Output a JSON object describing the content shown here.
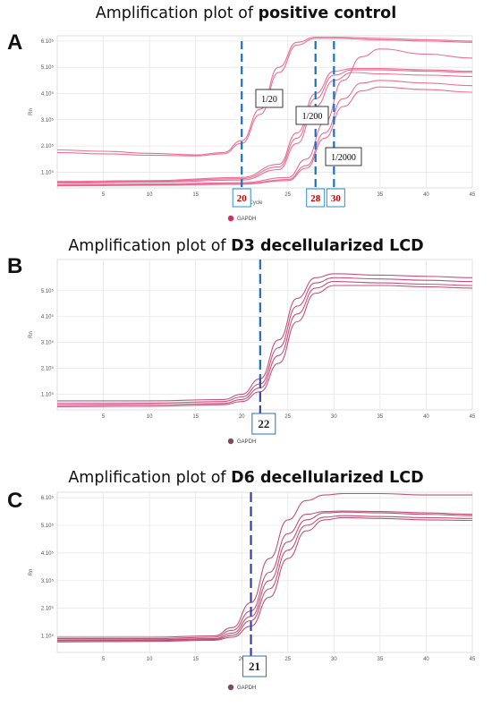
{
  "panels": [
    {
      "label": "A",
      "title_prefix": "Amplification plot of ",
      "title_bold": "positive control",
      "ylabel": "Rn",
      "xlabel": "Cycle",
      "legend": "GAPDH",
      "legend_color": "#e0265a",
      "curve_color": "#e8608a",
      "line_color": "#1f6fc0",
      "marker_color": "#c00000",
      "ct_markers": [
        {
          "cycle": 20,
          "label": "20"
        },
        {
          "cycle": 28,
          "label": "28"
        },
        {
          "cycle": 30,
          "label": "30"
        }
      ],
      "annotations": [
        "1/20",
        "1/200",
        "1/2000"
      ]
    },
    {
      "label": "B",
      "title_prefix": "Amplification plot of ",
      "title_bold": "D3 decellularized LCD",
      "ylabel": "Rn",
      "xlabel": "",
      "legend": "GAPDH",
      "legend_color": "#7a4a63",
      "curve_color": "#c0406f",
      "line_color": "#1f6fc0",
      "ct_markers": [
        {
          "cycle": 22,
          "label": "22"
        }
      ]
    },
    {
      "label": "C",
      "title_prefix": "Amplification plot of ",
      "title_bold": "D6 decellularized LCD",
      "ylabel": "Rn",
      "xlabel": "",
      "legend": "GAPDH",
      "legend_color": "#7a4a63",
      "curve_color": "#b8406a",
      "line_color": "#3a3fb0",
      "ct_markers": [
        {
          "cycle": 21,
          "label": "21"
        }
      ]
    }
  ],
  "chart_data": [
    {
      "type": "line",
      "title": "Amplification plot of positive control",
      "xlabel": "Cycle",
      "ylabel": "Rn",
      "xlim": [
        0,
        45
      ],
      "ylim": [
        0.5,
        6.3
      ],
      "x_ticks": [
        "5",
        "10",
        "15",
        "20",
        "25",
        "30",
        "35",
        "40",
        "45"
      ],
      "y_ticks": [
        "1.10⁵",
        "2.10⁵",
        "3.10⁵",
        "4.10⁵",
        "5.10⁵",
        "6.10⁵"
      ],
      "legend": [
        "GAPDH"
      ],
      "series": [
        {
          "name": "1/20",
          "x": [
            0,
            5,
            10,
            15,
            18,
            20,
            22,
            24,
            26,
            28,
            30,
            35,
            40,
            45
          ],
          "values": [
            1.85,
            1.8,
            1.75,
            1.72,
            1.8,
            2.2,
            3.3,
            4.9,
            5.95,
            6.2,
            6.2,
            6.15,
            6.1,
            6.05
          ]
        },
        {
          "name": "1/20",
          "x": [
            0,
            5,
            10,
            15,
            18,
            20,
            22,
            24,
            26,
            28,
            30,
            35,
            40,
            45
          ],
          "values": [
            1.95,
            1.9,
            1.82,
            1.76,
            1.85,
            2.3,
            3.5,
            5.1,
            6.05,
            6.25,
            6.25,
            6.2,
            6.15,
            6.1
          ]
        },
        {
          "name": "1/200",
          "x": [
            0,
            10,
            20,
            24,
            26,
            28,
            30,
            32,
            35,
            40,
            45
          ],
          "values": [
            0.72,
            0.75,
            0.85,
            1.3,
            2.4,
            3.9,
            4.8,
            5.0,
            5.0,
            4.95,
            4.9
          ]
        },
        {
          "name": "1/200",
          "x": [
            0,
            10,
            20,
            24,
            26,
            28,
            30,
            32,
            35,
            40,
            45
          ],
          "values": [
            0.68,
            0.72,
            0.8,
            1.2,
            2.2,
            3.6,
            4.6,
            4.9,
            4.85,
            4.8,
            4.75
          ]
        },
        {
          "name": "1/200",
          "x": [
            0,
            10,
            20,
            24,
            26,
            28,
            30,
            32,
            35,
            40,
            45
          ],
          "values": [
            0.75,
            0.78,
            0.9,
            1.4,
            2.6,
            4.1,
            4.95,
            5.05,
            5.05,
            5.0,
            4.95
          ]
        },
        {
          "name": "1/2000",
          "x": [
            0,
            10,
            20,
            25,
            27,
            29,
            31,
            33,
            35,
            40,
            45
          ],
          "values": [
            0.62,
            0.65,
            0.7,
            0.9,
            1.6,
            3.0,
            4.6,
            5.5,
            5.8,
            5.6,
            5.45
          ]
        },
        {
          "name": "1/2000",
          "x": [
            0,
            10,
            20,
            25,
            27,
            29,
            31,
            33,
            35,
            40,
            45
          ],
          "values": [
            0.6,
            0.62,
            0.66,
            0.82,
            1.35,
            2.6,
            3.9,
            4.5,
            4.6,
            4.5,
            4.4
          ]
        },
        {
          "name": "1/2000",
          "x": [
            0,
            10,
            20,
            25,
            27,
            29,
            31,
            33,
            35,
            40,
            45
          ],
          "values": [
            0.58,
            0.6,
            0.64,
            0.78,
            1.25,
            2.4,
            3.6,
            4.2,
            4.35,
            4.25,
            4.15
          ]
        }
      ],
      "annotations": [
        "1/20",
        "1/200",
        "1/2000",
        "20",
        "28",
        "30"
      ]
    },
    {
      "type": "line",
      "title": "Amplification plot of D3 decellularized LCD",
      "ylabel": "Rn",
      "xlim": [
        0,
        45
      ],
      "ylim": [
        0.5,
        6.3
      ],
      "x_ticks": [
        "5",
        "10",
        "15",
        "20",
        "25",
        "30",
        "35",
        "40",
        "45"
      ],
      "y_ticks": [
        "1.10⁵",
        "2.10⁵",
        "3.10⁵",
        "4.10⁵",
        "5.10⁵"
      ],
      "legend": [
        "GAPDH"
      ],
      "series": [
        {
          "x": [
            0,
            10,
            18,
            20,
            22,
            24,
            26,
            28,
            30,
            35,
            40,
            45
          ],
          "values": [
            0.85,
            0.85,
            0.9,
            1.1,
            1.7,
            3.2,
            4.8,
            5.6,
            5.75,
            5.7,
            5.65,
            5.6
          ]
        },
        {
          "x": [
            0,
            10,
            18,
            20,
            22,
            24,
            26,
            28,
            30,
            35,
            40,
            45
          ],
          "values": [
            0.75,
            0.76,
            0.82,
            1.0,
            1.5,
            2.9,
            4.5,
            5.4,
            5.6,
            5.55,
            5.5,
            5.45
          ]
        },
        {
          "x": [
            0,
            10,
            18,
            20,
            22,
            24,
            26,
            28,
            30,
            35,
            40,
            45
          ],
          "values": [
            0.68,
            0.7,
            0.75,
            0.9,
            1.35,
            2.6,
            4.2,
            5.2,
            5.45,
            5.4,
            5.35,
            5.3
          ]
        },
        {
          "x": [
            0,
            10,
            18,
            20,
            22,
            24,
            26,
            28,
            30,
            35,
            40,
            45
          ],
          "values": [
            0.62,
            0.64,
            0.7,
            0.82,
            1.2,
            2.3,
            3.9,
            5.0,
            5.3,
            5.3,
            5.25,
            5.2
          ]
        }
      ],
      "annotations": [
        "22"
      ]
    },
    {
      "type": "line",
      "title": "Amplification plot of D6 decellularized LCD",
      "ylabel": "Rn",
      "xlim": [
        0,
        45
      ],
      "ylim": [
        0.5,
        6.3
      ],
      "x_ticks": [
        "5",
        "10",
        "15",
        "20",
        "25",
        "30",
        "35",
        "40",
        "45"
      ],
      "y_ticks": [
        "1.10⁵",
        "2.10⁵",
        "3.10⁵",
        "4.10⁵",
        "5.10⁵",
        "6.10⁵"
      ],
      "legend": [
        "GAPDH"
      ],
      "series": [
        {
          "x": [
            0,
            10,
            17,
            19,
            21,
            23,
            25,
            27,
            29,
            31,
            35,
            40,
            45
          ],
          "values": [
            1.05,
            1.05,
            1.1,
            1.4,
            2.3,
            3.9,
            5.3,
            6.0,
            6.2,
            6.25,
            6.25,
            6.2,
            6.2
          ]
        },
        {
          "x": [
            0,
            10,
            17,
            19,
            21,
            23,
            25,
            27,
            29,
            31,
            35,
            40,
            45
          ],
          "values": [
            1.0,
            1.0,
            1.05,
            1.3,
            2.0,
            3.4,
            4.8,
            5.5,
            5.6,
            5.62,
            5.6,
            5.55,
            5.5
          ]
        },
        {
          "x": [
            0,
            10,
            17,
            19,
            21,
            23,
            25,
            27,
            29,
            31,
            35,
            40,
            45
          ],
          "values": [
            0.95,
            0.96,
            1.0,
            1.2,
            1.8,
            3.1,
            4.5,
            5.3,
            5.55,
            5.58,
            5.55,
            5.5,
            5.45
          ]
        },
        {
          "x": [
            0,
            10,
            17,
            19,
            21,
            23,
            25,
            27,
            29,
            31,
            35,
            40,
            45
          ],
          "values": [
            0.92,
            0.93,
            0.97,
            1.12,
            1.65,
            2.8,
            4.2,
            5.1,
            5.4,
            5.45,
            5.42,
            5.38,
            5.35
          ]
        },
        {
          "x": [
            0,
            10,
            17,
            19,
            21,
            23,
            25,
            27,
            29,
            31,
            35,
            40,
            45
          ],
          "values": [
            0.88,
            0.9,
            0.94,
            1.05,
            1.45,
            2.5,
            3.9,
            4.9,
            5.3,
            5.38,
            5.35,
            5.3,
            5.28
          ]
        }
      ],
      "annotations": [
        "21"
      ]
    }
  ]
}
